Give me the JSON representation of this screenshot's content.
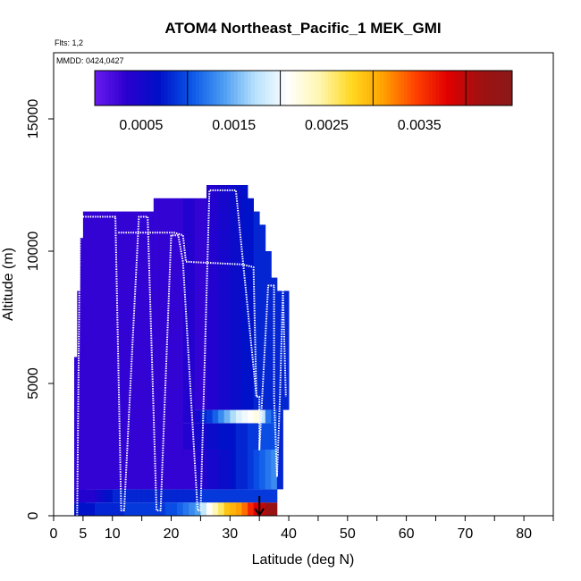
{
  "chart_data": {
    "type": "heatmap",
    "title": "ATOM4 Northeast_Pacific_1 MEK_GMI",
    "flights_label": "Flts: 1,2",
    "dates_label": "MMDD: 0424,0427",
    "xlabel": "Latitude (deg N)",
    "ylabel": "Altitude (m)",
    "xlim": [
      0,
      85
    ],
    "ylim": [
      0,
      17500
    ],
    "x_ticks": [
      0,
      5,
      10,
      20,
      30,
      40,
      50,
      60,
      70,
      80
    ],
    "y_ticks": [
      0,
      5000,
      10000,
      15000
    ],
    "colorbar": {
      "range": [
        0,
        0.0045
      ],
      "tick_values": [
        0.0005,
        0.0015,
        0.0025,
        0.0035
      ],
      "tick_labels": [
        "0.0005",
        "0.0015",
        "0.0025",
        "0.0035"
      ],
      "boundaries": [
        0.001,
        0.002,
        0.003,
        0.004
      ],
      "colors": [
        "#6a1aee",
        "#2a00d0",
        "#0010c8",
        "#0a55e8",
        "#4a9cf2",
        "#b8e2fc",
        "#ffffff",
        "#fff6b0",
        "#ffd820",
        "#ffa000",
        "#ff4000",
        "#e00000",
        "#a01010",
        "#8b1a1a"
      ]
    },
    "columns": [
      {
        "lat": 4,
        "top": 6000,
        "cells": [
          [
            0,
            0.0007
          ],
          [
            500,
            0.0004
          ],
          [
            1000,
            0.0003
          ],
          [
            6000,
            0.0003
          ]
        ]
      },
      {
        "lat": 4.5,
        "top": 8500,
        "cells": [
          [
            0,
            0.0007
          ],
          [
            500,
            0.0004
          ],
          [
            1000,
            0.0003
          ],
          [
            8500,
            0.0003
          ]
        ]
      },
      {
        "lat": 5,
        "top": 10500,
        "cells": [
          [
            0,
            0.0007
          ],
          [
            500,
            0.0004
          ],
          [
            1000,
            0.0003
          ],
          [
            10500,
            0.0003
          ]
        ]
      },
      {
        "lat": 5.5,
        "top": 11500,
        "cells": [
          [
            0,
            0.0007
          ],
          [
            500,
            0.0004
          ],
          [
            1000,
            0.0003
          ],
          [
            11500,
            0.0003
          ]
        ]
      },
      {
        "lat": 6.5,
        "top": 11500,
        "cells": [
          [
            0,
            0.0007
          ],
          [
            500,
            0.0004
          ],
          [
            1000,
            0.0003
          ],
          [
            11500,
            0.0003
          ]
        ]
      },
      {
        "lat": 7.5,
        "top": 11500,
        "cells": [
          [
            0,
            0.0008
          ],
          [
            500,
            0.0005
          ],
          [
            1000,
            0.0003
          ],
          [
            11500,
            0.0003
          ]
        ]
      },
      {
        "lat": 8.5,
        "top": 11500,
        "cells": [
          [
            0,
            0.0008
          ],
          [
            500,
            0.0006
          ],
          [
            1000,
            0.0003
          ],
          [
            11500,
            0.0003
          ]
        ]
      },
      {
        "lat": 9.5,
        "top": 11500,
        "cells": [
          [
            0,
            0.0008
          ],
          [
            500,
            0.0007
          ],
          [
            1000,
            0.0003
          ],
          [
            11500,
            0.0003
          ]
        ]
      },
      {
        "lat": 10.5,
        "top": 11500,
        "cells": [
          [
            0,
            0.0008
          ],
          [
            500,
            0.0008
          ],
          [
            1000,
            0.0003
          ],
          [
            11500,
            0.0003
          ]
        ]
      },
      {
        "lat": 11.5,
        "top": 11500,
        "cells": [
          [
            0,
            0.0008
          ],
          [
            500,
            0.0008
          ],
          [
            1000,
            0.0003
          ],
          [
            11500,
            0.0003
          ]
        ]
      },
      {
        "lat": 12.5,
        "top": 11500,
        "cells": [
          [
            0,
            0.0009
          ],
          [
            500,
            0.0008
          ],
          [
            1000,
            0.0003
          ],
          [
            11500,
            0.0003
          ]
        ]
      },
      {
        "lat": 13.5,
        "top": 11500,
        "cells": [
          [
            0,
            0.0009
          ],
          [
            500,
            0.0008
          ],
          [
            1000,
            0.0003
          ],
          [
            11500,
            0.0003
          ]
        ]
      },
      {
        "lat": 14.5,
        "top": 11500,
        "cells": [
          [
            0,
            0.0009
          ],
          [
            500,
            0.0008
          ],
          [
            1000,
            0.0003
          ],
          [
            11500,
            0.0003
          ]
        ]
      },
      {
        "lat": 15.5,
        "top": 11500,
        "cells": [
          [
            0,
            0.0009
          ],
          [
            500,
            0.0008
          ],
          [
            1000,
            0.0003
          ],
          [
            11500,
            0.0003
          ]
        ]
      },
      {
        "lat": 16.5,
        "top": 11500,
        "cells": [
          [
            0,
            0.0009
          ],
          [
            500,
            0.0008
          ],
          [
            1000,
            0.0003
          ],
          [
            11500,
            0.0003
          ]
        ]
      },
      {
        "lat": 17.5,
        "top": 12000,
        "cells": [
          [
            0,
            0.0009
          ],
          [
            500,
            0.0008
          ],
          [
            1000,
            0.0003
          ],
          [
            12000,
            0.0003
          ]
        ]
      },
      {
        "lat": 18.5,
        "top": 12000,
        "cells": [
          [
            0,
            0.0009
          ],
          [
            500,
            0.0008
          ],
          [
            1000,
            0.0003
          ],
          [
            12000,
            0.0003
          ]
        ]
      },
      {
        "lat": 19.5,
        "top": 12000,
        "cells": [
          [
            0,
            0.001
          ],
          [
            500,
            0.0008
          ],
          [
            1000,
            0.0003
          ],
          [
            12000,
            0.0003
          ]
        ]
      },
      {
        "lat": 20.5,
        "top": 12000,
        "cells": [
          [
            0,
            0.001
          ],
          [
            500,
            0.0008
          ],
          [
            1000,
            0.0003
          ],
          [
            12000,
            0.0003
          ]
        ]
      },
      {
        "lat": 21.5,
        "top": 12000,
        "cells": [
          [
            0,
            0.0011
          ],
          [
            500,
            0.0008
          ],
          [
            1000,
            0.0003
          ],
          [
            12000,
            0.0003
          ]
        ]
      },
      {
        "lat": 22.5,
        "top": 12000,
        "cells": [
          [
            0,
            0.0012
          ],
          [
            500,
            0.0008
          ],
          [
            1000,
            0.0003
          ],
          [
            2500,
            0.0004
          ],
          [
            3500,
            0.0004
          ],
          [
            12000,
            0.0003
          ]
        ]
      },
      {
        "lat": 23.5,
        "top": 12000,
        "cells": [
          [
            0,
            0.0013
          ],
          [
            500,
            0.0008
          ],
          [
            1000,
            0.0003
          ],
          [
            2500,
            0.0004
          ],
          [
            3500,
            0.0004
          ],
          [
            12000,
            0.0003
          ]
        ]
      },
      {
        "lat": 24.5,
        "top": 12000,
        "cells": [
          [
            0,
            0.0014
          ],
          [
            500,
            0.0008
          ],
          [
            1000,
            0.0004
          ],
          [
            2500,
            0.0005
          ],
          [
            3500,
            0.0005
          ],
          [
            4000,
            0.0003
          ],
          [
            12000,
            0.0003
          ]
        ]
      },
      {
        "lat": 25.5,
        "top": 12000,
        "cells": [
          [
            0,
            0.0018
          ],
          [
            500,
            0.0009
          ],
          [
            1000,
            0.0004
          ],
          [
            2500,
            0.0005
          ],
          [
            3500,
            0.0008
          ],
          [
            4000,
            0.0003
          ],
          [
            12000,
            0.0003
          ]
        ]
      },
      {
        "lat": 26.5,
        "top": 12500,
        "cells": [
          [
            0,
            0.0021
          ],
          [
            500,
            0.0009
          ],
          [
            1000,
            0.0005
          ],
          [
            2500,
            0.0006
          ],
          [
            3500,
            0.0009
          ],
          [
            4000,
            0.0004
          ],
          [
            12500,
            0.0003
          ]
        ]
      },
      {
        "lat": 27.5,
        "top": 12500,
        "cells": [
          [
            0,
            0.0024
          ],
          [
            500,
            0.0009
          ],
          [
            1000,
            0.0005
          ],
          [
            2500,
            0.0006
          ],
          [
            3500,
            0.0011
          ],
          [
            4000,
            0.0004
          ],
          [
            12500,
            0.0003
          ]
        ]
      },
      {
        "lat": 28.5,
        "top": 12500,
        "cells": [
          [
            0,
            0.0026
          ],
          [
            500,
            0.0009
          ],
          [
            1000,
            0.0006
          ],
          [
            2500,
            0.0007
          ],
          [
            3500,
            0.0013
          ],
          [
            4000,
            0.0005
          ],
          [
            12500,
            0.0004
          ]
        ]
      },
      {
        "lat": 29.5,
        "top": 12500,
        "cells": [
          [
            0,
            0.0029
          ],
          [
            500,
            0.0009
          ],
          [
            1000,
            0.0006
          ],
          [
            2500,
            0.0007
          ],
          [
            3500,
            0.0015
          ],
          [
            4000,
            0.0005
          ],
          [
            12500,
            0.0004
          ]
        ]
      },
      {
        "lat": 30.5,
        "top": 12500,
        "cells": [
          [
            0,
            0.003
          ],
          [
            500,
            0.0009
          ],
          [
            1000,
            0.0007
          ],
          [
            2500,
            0.0007
          ],
          [
            3500,
            0.0017
          ],
          [
            4000,
            0.0006
          ],
          [
            12500,
            0.0004
          ]
        ]
      },
      {
        "lat": 31.5,
        "top": 12500,
        "cells": [
          [
            0,
            0.0031
          ],
          [
            500,
            0.0009
          ],
          [
            1000,
            0.0008
          ],
          [
            2500,
            0.0008
          ],
          [
            3500,
            0.0019
          ],
          [
            4000,
            0.0006
          ],
          [
            12500,
            0.0004
          ]
        ]
      },
      {
        "lat": 32.5,
        "top": 12500,
        "cells": [
          [
            0,
            0.0033
          ],
          [
            500,
            0.0009
          ],
          [
            1000,
            0.0008
          ],
          [
            2500,
            0.0008
          ],
          [
            3500,
            0.002
          ],
          [
            4000,
            0.0007
          ],
          [
            12500,
            0.0005
          ]
        ]
      },
      {
        "lat": 33.5,
        "top": 12000,
        "cells": [
          [
            0,
            0.0036
          ],
          [
            500,
            0.0009
          ],
          [
            1000,
            0.0009
          ],
          [
            2500,
            0.0009
          ],
          [
            3500,
            0.0021
          ],
          [
            4000,
            0.0007
          ],
          [
            12000,
            0.0005
          ]
        ]
      },
      {
        "lat": 34.5,
        "top": 11500,
        "cells": [
          [
            0,
            0.0038
          ],
          [
            500,
            0.0009
          ],
          [
            1000,
            0.001
          ],
          [
            2500,
            0.0009
          ],
          [
            3500,
            0.0022
          ],
          [
            4000,
            0.0008
          ],
          [
            11500,
            0.0006
          ]
        ]
      },
      {
        "lat": 35.5,
        "top": 11000,
        "cells": [
          [
            0,
            0.004
          ],
          [
            500,
            0.0009
          ],
          [
            1000,
            0.0011
          ],
          [
            2500,
            0.001
          ],
          [
            3500,
            0.0018
          ],
          [
            4000,
            0.0008
          ],
          [
            11000,
            0.0006
          ]
        ]
      },
      {
        "lat": 36.5,
        "top": 10000,
        "cells": [
          [
            0,
            0.0042
          ],
          [
            500,
            0.0009
          ],
          [
            1000,
            0.0012
          ],
          [
            2500,
            0.001
          ],
          [
            3500,
            0.0012
          ],
          [
            4000,
            0.0008
          ],
          [
            10000,
            0.0006
          ]
        ]
      },
      {
        "lat": 37.5,
        "top": 9000,
        "cells": [
          [
            0,
            0.0043
          ],
          [
            500,
            0.0009
          ],
          [
            1000,
            0.0013
          ],
          [
            2500,
            0.001
          ],
          [
            3500,
            0.001
          ],
          [
            4000,
            0.0008
          ],
          [
            9000,
            0.0007
          ]
        ]
      },
      {
        "lat": 38.5,
        "top": 8500,
        "cells": [
          [
            1000,
            0.0008
          ],
          [
            4000,
            0.0008
          ],
          [
            8500,
            0.0007
          ]
        ]
      },
      {
        "lat": 39.5,
        "top": 8500,
        "cells": [
          [
            4000,
            0.0008
          ],
          [
            8500,
            0.0008
          ]
        ]
      }
    ],
    "series": [
      {
        "points": [
          [
            4,
            0
          ],
          [
            4.5,
            11300
          ],
          [
            5.5,
            11300
          ],
          [
            8.2,
            11300
          ],
          [
            10.5,
            11300
          ],
          [
            11.5,
            200
          ],
          [
            12,
            200
          ],
          [
            14.5,
            11300
          ],
          [
            15.5,
            11300
          ],
          [
            16,
            11300
          ],
          [
            17.5,
            200
          ],
          [
            18.2,
            200
          ],
          [
            20,
            10600
          ],
          [
            21.2,
            10600
          ],
          [
            22,
            9600
          ],
          [
            24.5,
            200
          ],
          [
            25,
            200
          ],
          [
            26.5,
            12300
          ],
          [
            27.2,
            12300
          ],
          [
            31,
            12300
          ],
          [
            34.5,
            4500
          ]
        ]
      },
      {
        "points": [
          [
            11,
            10700
          ],
          [
            20.5,
            10700
          ],
          [
            22,
            10600
          ],
          [
            22.5,
            9600
          ],
          [
            32,
            9500
          ],
          [
            34,
            9400
          ],
          [
            34.5,
            4500
          ],
          [
            35,
            4500
          ],
          [
            35,
            2500
          ],
          [
            36.5,
            8700
          ],
          [
            37.5,
            8700
          ],
          [
            37.5,
            4500
          ],
          [
            38,
            1500
          ],
          [
            38.5,
            4500
          ],
          [
            39,
            8500
          ],
          [
            39.5,
            4500
          ]
        ]
      }
    ],
    "marker": {
      "lat": 35,
      "alt": 0
    }
  }
}
